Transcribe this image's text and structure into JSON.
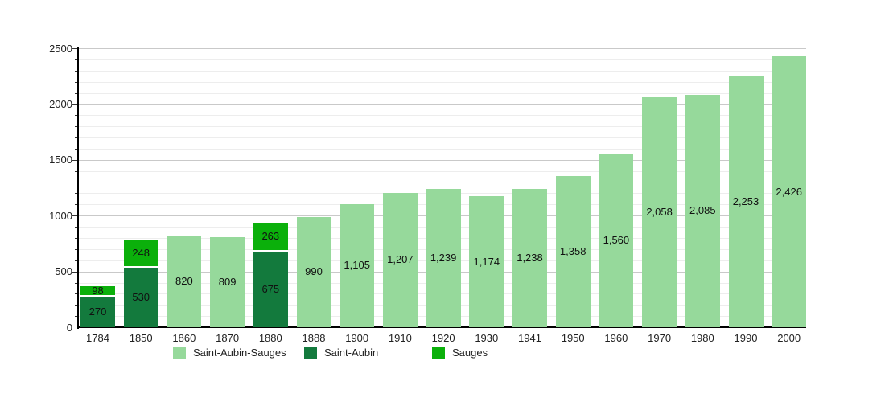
{
  "chart_data": {
    "type": "bar",
    "stacked": true,
    "title": "",
    "xlabel": "",
    "ylabel": "",
    "ylim": [
      0,
      2500
    ],
    "ytick_step": 500,
    "minor_grid_step": 100,
    "grid": true,
    "legend_position": "bottom",
    "categories": [
      "1784",
      "1850",
      "1860",
      "1870",
      "1880",
      "1888",
      "1900",
      "1910",
      "1920",
      "1930",
      "1941",
      "1950",
      "1960",
      "1970",
      "1980",
      "1990",
      "2000"
    ],
    "series": [
      {
        "name": "Saint-Aubin-Sauges",
        "color": "#96d99b",
        "values": [
          null,
          null,
          820,
          809,
          null,
          990,
          1105,
          1207,
          1239,
          1174,
          1238,
          1358,
          1560,
          2058,
          2085,
          2253,
          2426
        ]
      },
      {
        "name": "Saint-Aubin",
        "color": "#137a3d",
        "values": [
          270,
          530,
          null,
          null,
          675,
          null,
          null,
          null,
          null,
          null,
          null,
          null,
          null,
          null,
          null,
          null,
          null
        ]
      },
      {
        "name": "Sauges",
        "color": "#0bb00b",
        "values": [
          98,
          248,
          null,
          null,
          263,
          null,
          null,
          null,
          null,
          null,
          null,
          null,
          null,
          null,
          null,
          null,
          null
        ]
      }
    ],
    "bars": [
      {
        "category": "1784",
        "segments": [
          {
            "series": "Saint-Aubin",
            "value": 270,
            "label": "270"
          },
          {
            "series": "Sauges",
            "value": 98,
            "label": "98"
          }
        ]
      },
      {
        "category": "1850",
        "segments": [
          {
            "series": "Saint-Aubin",
            "value": 530,
            "label": "530"
          },
          {
            "series": "Sauges",
            "value": 248,
            "label": "248"
          }
        ]
      },
      {
        "category": "1860",
        "segments": [
          {
            "series": "Saint-Aubin-Sauges",
            "value": 820,
            "label": "820"
          }
        ]
      },
      {
        "category": "1870",
        "segments": [
          {
            "series": "Saint-Aubin-Sauges",
            "value": 809,
            "label": "809"
          }
        ]
      },
      {
        "category": "1880",
        "segments": [
          {
            "series": "Saint-Aubin",
            "value": 675,
            "label": "675"
          },
          {
            "series": "Sauges",
            "value": 263,
            "label": "263"
          }
        ]
      },
      {
        "category": "1888",
        "segments": [
          {
            "series": "Saint-Aubin-Sauges",
            "value": 990,
            "label": "990"
          }
        ]
      },
      {
        "category": "1900",
        "segments": [
          {
            "series": "Saint-Aubin-Sauges",
            "value": 1105,
            "label": "1,105"
          }
        ]
      },
      {
        "category": "1910",
        "segments": [
          {
            "series": "Saint-Aubin-Sauges",
            "value": 1207,
            "label": "1,207"
          }
        ]
      },
      {
        "category": "1920",
        "segments": [
          {
            "series": "Saint-Aubin-Sauges",
            "value": 1239,
            "label": "1,239"
          }
        ]
      },
      {
        "category": "1930",
        "segments": [
          {
            "series": "Saint-Aubin-Sauges",
            "value": 1174,
            "label": "1,174"
          }
        ]
      },
      {
        "category": "1941",
        "segments": [
          {
            "series": "Saint-Aubin-Sauges",
            "value": 1238,
            "label": "1,238"
          }
        ]
      },
      {
        "category": "1950",
        "segments": [
          {
            "series": "Saint-Aubin-Sauges",
            "value": 1358,
            "label": "1,358"
          }
        ]
      },
      {
        "category": "1960",
        "segments": [
          {
            "series": "Saint-Aubin-Sauges",
            "value": 1560,
            "label": "1,560"
          }
        ]
      },
      {
        "category": "1970",
        "segments": [
          {
            "series": "Saint-Aubin-Sauges",
            "value": 2058,
            "label": "2,058"
          }
        ]
      },
      {
        "category": "1980",
        "segments": [
          {
            "series": "Saint-Aubin-Sauges",
            "value": 2085,
            "label": "2,085"
          }
        ]
      },
      {
        "category": "1990",
        "segments": [
          {
            "series": "Saint-Aubin-Sauges",
            "value": 2253,
            "label": "2,253"
          }
        ]
      },
      {
        "category": "2000",
        "segments": [
          {
            "series": "Saint-Aubin-Sauges",
            "value": 2426,
            "label": "2,426"
          }
        ]
      }
    ],
    "ytick_labels": [
      "0",
      "500",
      "1000",
      "1500",
      "2000",
      "2500"
    ],
    "legend": [
      {
        "label": "Saint-Aubin-Sauges",
        "color": "#96d99b"
      },
      {
        "label": "Saint-Aubin",
        "color": "#137a3d"
      },
      {
        "label": "Sauges",
        "color": "#0bb00b"
      }
    ]
  }
}
